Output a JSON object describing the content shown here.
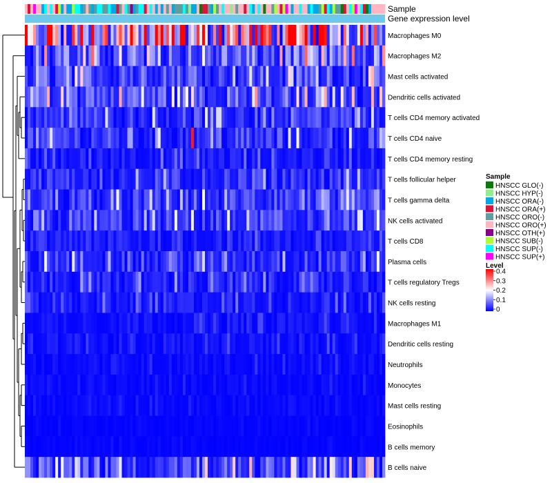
{
  "chart_data": {
    "type": "heatmap",
    "title": "",
    "annotation_tracks": [
      "Sample",
      "Gene expression level"
    ],
    "row_labels": [
      "Macrophages M0",
      "Macrophages M2",
      "Mast cells activated",
      "Dendritic cells activated",
      "T cells CD4 memory activated",
      "T cells CD4 naive",
      "T cells CD4 memory resting",
      "T cells follicular helper",
      "T cells gamma delta",
      "NK cells activated",
      "T cells CD8",
      "Plasma cells",
      "T cells regulatory  Tregs",
      "NK cells resting",
      "Macrophages M1",
      "Dendritic cells resting",
      "Neutrophils",
      "Monocytes",
      "Mast cells resting",
      "Eosinophils",
      "B cells memory",
      "B cells naive"
    ],
    "row_mean_level": [
      0.3,
      0.1,
      0.08,
      0.09,
      0.06,
      0.06,
      0.03,
      0.05,
      0.06,
      0.06,
      0.03,
      0.06,
      0.04,
      0.03,
      0.02,
      0.02,
      0.015,
      0.01,
      0.01,
      0.005,
      0.005,
      0.08
    ],
    "n_samples": 130,
    "gene_expression_level_color": "#6ec8ea",
    "sample_legend": {
      "title": "Sample",
      "items": [
        {
          "label": "HNSCC GLO(-)",
          "color": "#0b7a0b"
        },
        {
          "label": "HNSCC HYP(-)",
          "color": "#90ee90"
        },
        {
          "label": "HNSCC ORA(-)",
          "color": "#00a8e8"
        },
        {
          "label": "HNSCC ORA(+)",
          "color": "#dc143c"
        },
        {
          "label": "HNSCC ORO(-)",
          "color": "#5f9ea0"
        },
        {
          "label": "HNSCC ORO(+)",
          "color": "#ffb6c1"
        },
        {
          "label": "HNSCC OTH(+)",
          "color": "#8b008b"
        },
        {
          "label": "HNSCC SUB(-)",
          "color": "#adff2f"
        },
        {
          "label": "HNSCC SUP(-)",
          "color": "#00ffff"
        },
        {
          "label": "HNSCC SUP(+)",
          "color": "#ff00ff"
        }
      ]
    },
    "level_legend": {
      "title": "Level",
      "ticks": [
        "0.4",
        "0.3",
        "0.2",
        "0.1",
        "0"
      ],
      "range": [
        0,
        0.4
      ],
      "colors": [
        "#0000ff",
        "#ffffff",
        "#ff0000"
      ]
    }
  }
}
